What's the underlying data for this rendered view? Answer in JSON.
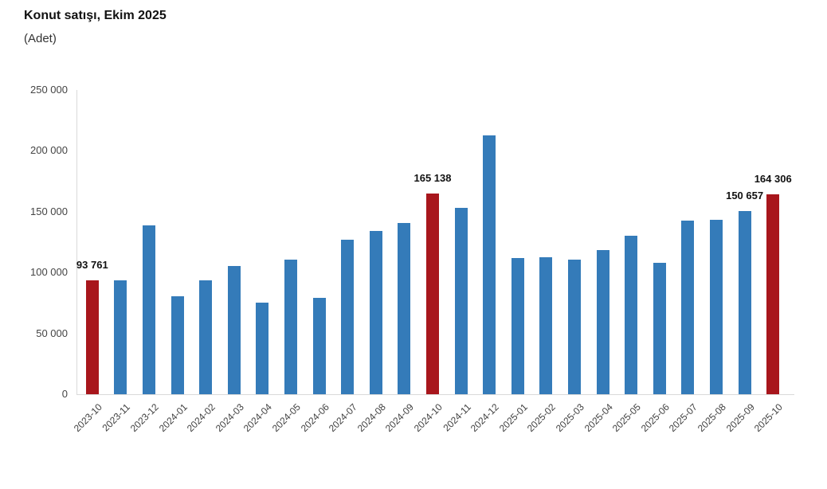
{
  "header": {
    "title": "Konut satışı, Ekim 2025",
    "subtitle": "(Adet)"
  },
  "chart_data": {
    "type": "bar",
    "title": "Konut satışı, Ekim 2025",
    "subtitle": "(Adet)",
    "xlabel": "",
    "ylabel": "Adet",
    "ylim": [
      0,
      250000
    ],
    "grid": false,
    "legend": "none",
    "y_ticks": [
      "0",
      "50 000",
      "100 000",
      "150 000",
      "200 000",
      "250 000"
    ],
    "y_tick_values": [
      0,
      50000,
      100000,
      150000,
      200000,
      250000
    ],
    "categories": [
      "2023-10",
      "2023-11",
      "2023-12",
      "2024-01",
      "2024-02",
      "2024-03",
      "2024-04",
      "2024-05",
      "2024-06",
      "2024-07",
      "2024-08",
      "2024-09",
      "2024-10",
      "2024-11",
      "2024-12",
      "2025-01",
      "2025-02",
      "2025-03",
      "2025-04",
      "2025-05",
      "2025-06",
      "2025-07",
      "2025-08",
      "2025-09",
      "2025-10"
    ],
    "values": [
      93761,
      93514,
      138577,
      80308,
      93902,
      105476,
      75569,
      110588,
      79313,
      127088,
      134155,
      140919,
      165138,
      153436,
      212637,
      112173,
      112818,
      110795,
      118359,
      130025,
      107723,
      142858,
      143319,
      150657,
      164306
    ],
    "highlight_indices": [
      0,
      12,
      24
    ],
    "data_labels": [
      {
        "index": 0,
        "text": "93 761"
      },
      {
        "index": 12,
        "text": "165 138"
      },
      {
        "index": 23,
        "text": "150 657"
      },
      {
        "index": 24,
        "text": "164 306"
      }
    ],
    "bar_color": "#347bb9",
    "highlight_color": "#a8161c",
    "axis_line_color": "#d9d9d9",
    "tick_text_color": "#444444",
    "label_text_color": "#111111"
  }
}
